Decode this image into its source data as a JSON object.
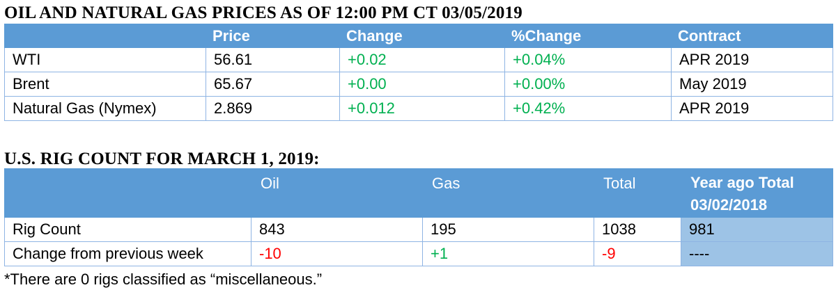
{
  "prices_section": {
    "title": "OIL AND NATURAL GAS PRICES AS OF 12:00 PM CT 03/05/2019",
    "columns": [
      "",
      "Price",
      "Change",
      "%Change",
      "Contract"
    ],
    "rows": [
      {
        "name": "WTI",
        "price": "56.61",
        "change": "+0.02",
        "pct_change": "+0.04%",
        "contract": "APR 2019"
      },
      {
        "name": "Brent",
        "price": "65.67",
        "change": "+0.00",
        "pct_change": "+0.00%",
        "contract": "May 2019"
      },
      {
        "name": "Natural Gas (Nymex)",
        "price": "2.869",
        "change": "+0.012",
        "pct_change": "+0.42%",
        "contract": "APR 2019"
      }
    ]
  },
  "rig_section": {
    "title": "U.S. RIG COUNT FOR MARCH 1, 2019:",
    "columns": [
      "",
      "Oil",
      "Gas",
      "Total",
      "Year ago Total 03/02/2018"
    ],
    "rows": [
      {
        "label": "Rig Count",
        "oil": "843",
        "gas": "195",
        "total": "1038",
        "year_ago": "981"
      },
      {
        "label": "Change from previous week",
        "oil": "-10",
        "gas": "+1",
        "total": "-9",
        "year_ago": "----"
      }
    ]
  },
  "footnote": "*There are 0 rigs classified as “miscellaneous.”",
  "colors": {
    "header_bg": "#5b9bd5",
    "year_ago_bg": "#9dc3e6",
    "positive": "#00b050",
    "negative": "#ff0000",
    "border": "#8eb4e3"
  }
}
